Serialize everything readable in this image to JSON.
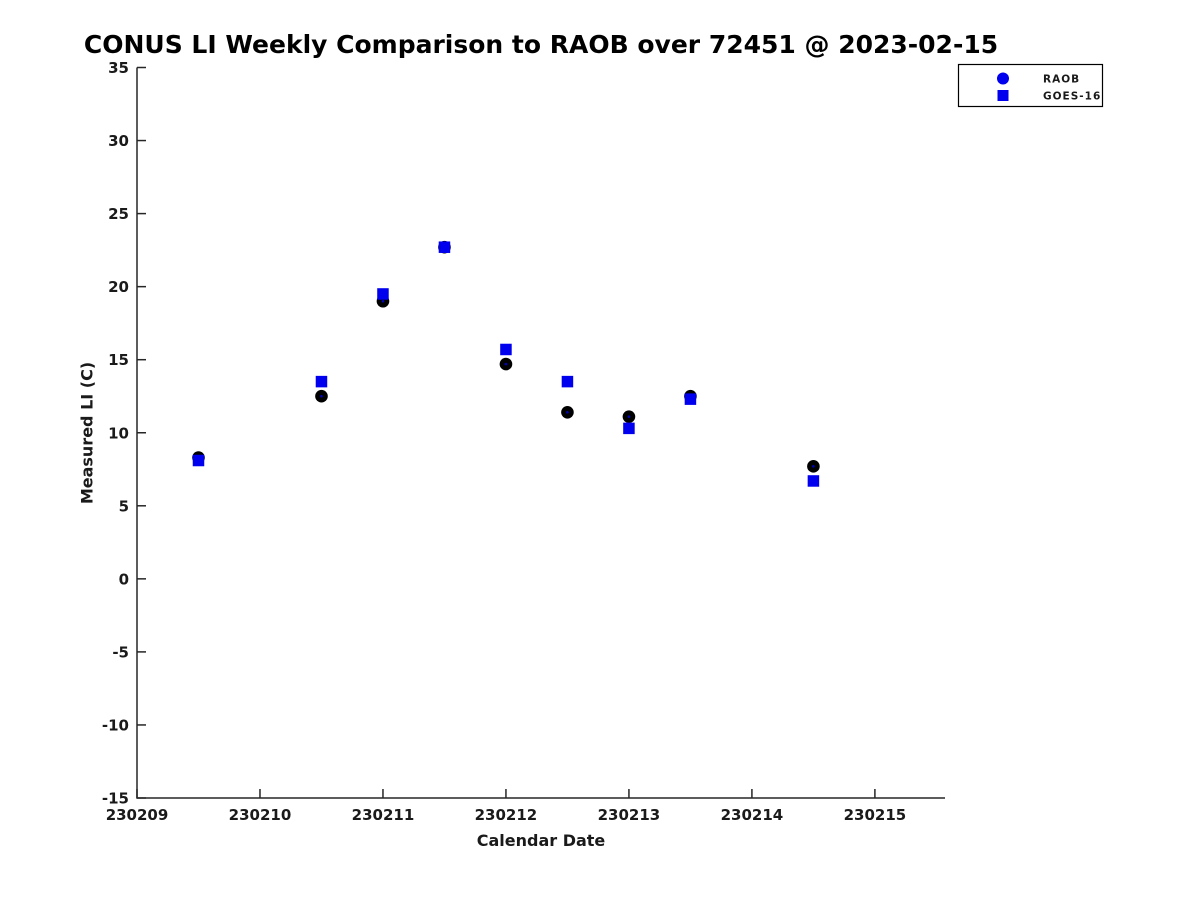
{
  "chart_data": {
    "type": "scatter",
    "title": "CONUS LI Weekly Comparison to RAOB over 72451 @ 2023-02-15",
    "xlabel": "Calendar Date",
    "ylabel": "Measured LI (C)",
    "xlim": [
      230209,
      230215.57
    ],
    "ylim": [
      -15,
      35
    ],
    "grid": false,
    "y_ticks": [
      35,
      30,
      25,
      20,
      15,
      10,
      5,
      0,
      -5,
      -10,
      -15
    ],
    "x_ticks": {
      "values": [
        230209,
        230210,
        230211,
        230212,
        230213,
        230214,
        230215
      ],
      "labels": [
        "230209",
        "230210",
        "230211",
        "230212",
        "230213",
        "230214",
        "230215"
      ]
    },
    "colors": {
      "raob_plot_marker": "#000000",
      "goes_plot_marker": "#0000ee",
      "legend_marker_blue": "#0000ee",
      "axis": "#262626"
    },
    "legend": {
      "position": "top-right",
      "items": [
        {
          "label": "RAOB",
          "marker": "circle",
          "color": "#0000ee"
        },
        {
          "label": "GOES-16",
          "marker": "square",
          "color": "#0000ee"
        }
      ]
    },
    "series": [
      {
        "name": "RAOB",
        "marker": "circle",
        "color": "#000000",
        "x": [
          230209.5,
          230210.5,
          230211.0,
          230211.5,
          230212.0,
          230212.5,
          230213.0,
          230213.5,
          230214.5
        ],
        "y": [
          8.3,
          12.5,
          19.0,
          22.7,
          14.7,
          11.4,
          11.1,
          12.5,
          7.7
        ]
      },
      {
        "name": "GOES-16",
        "marker": "square",
        "color": "#0000ee",
        "x": [
          230209.5,
          230210.5,
          230211.0,
          230211.5,
          230212.0,
          230212.5,
          230213.0,
          230213.5,
          230214.5
        ],
        "y": [
          8.1,
          13.5,
          19.5,
          22.7,
          15.7,
          13.5,
          10.3,
          12.3,
          6.7
        ]
      }
    ]
  }
}
